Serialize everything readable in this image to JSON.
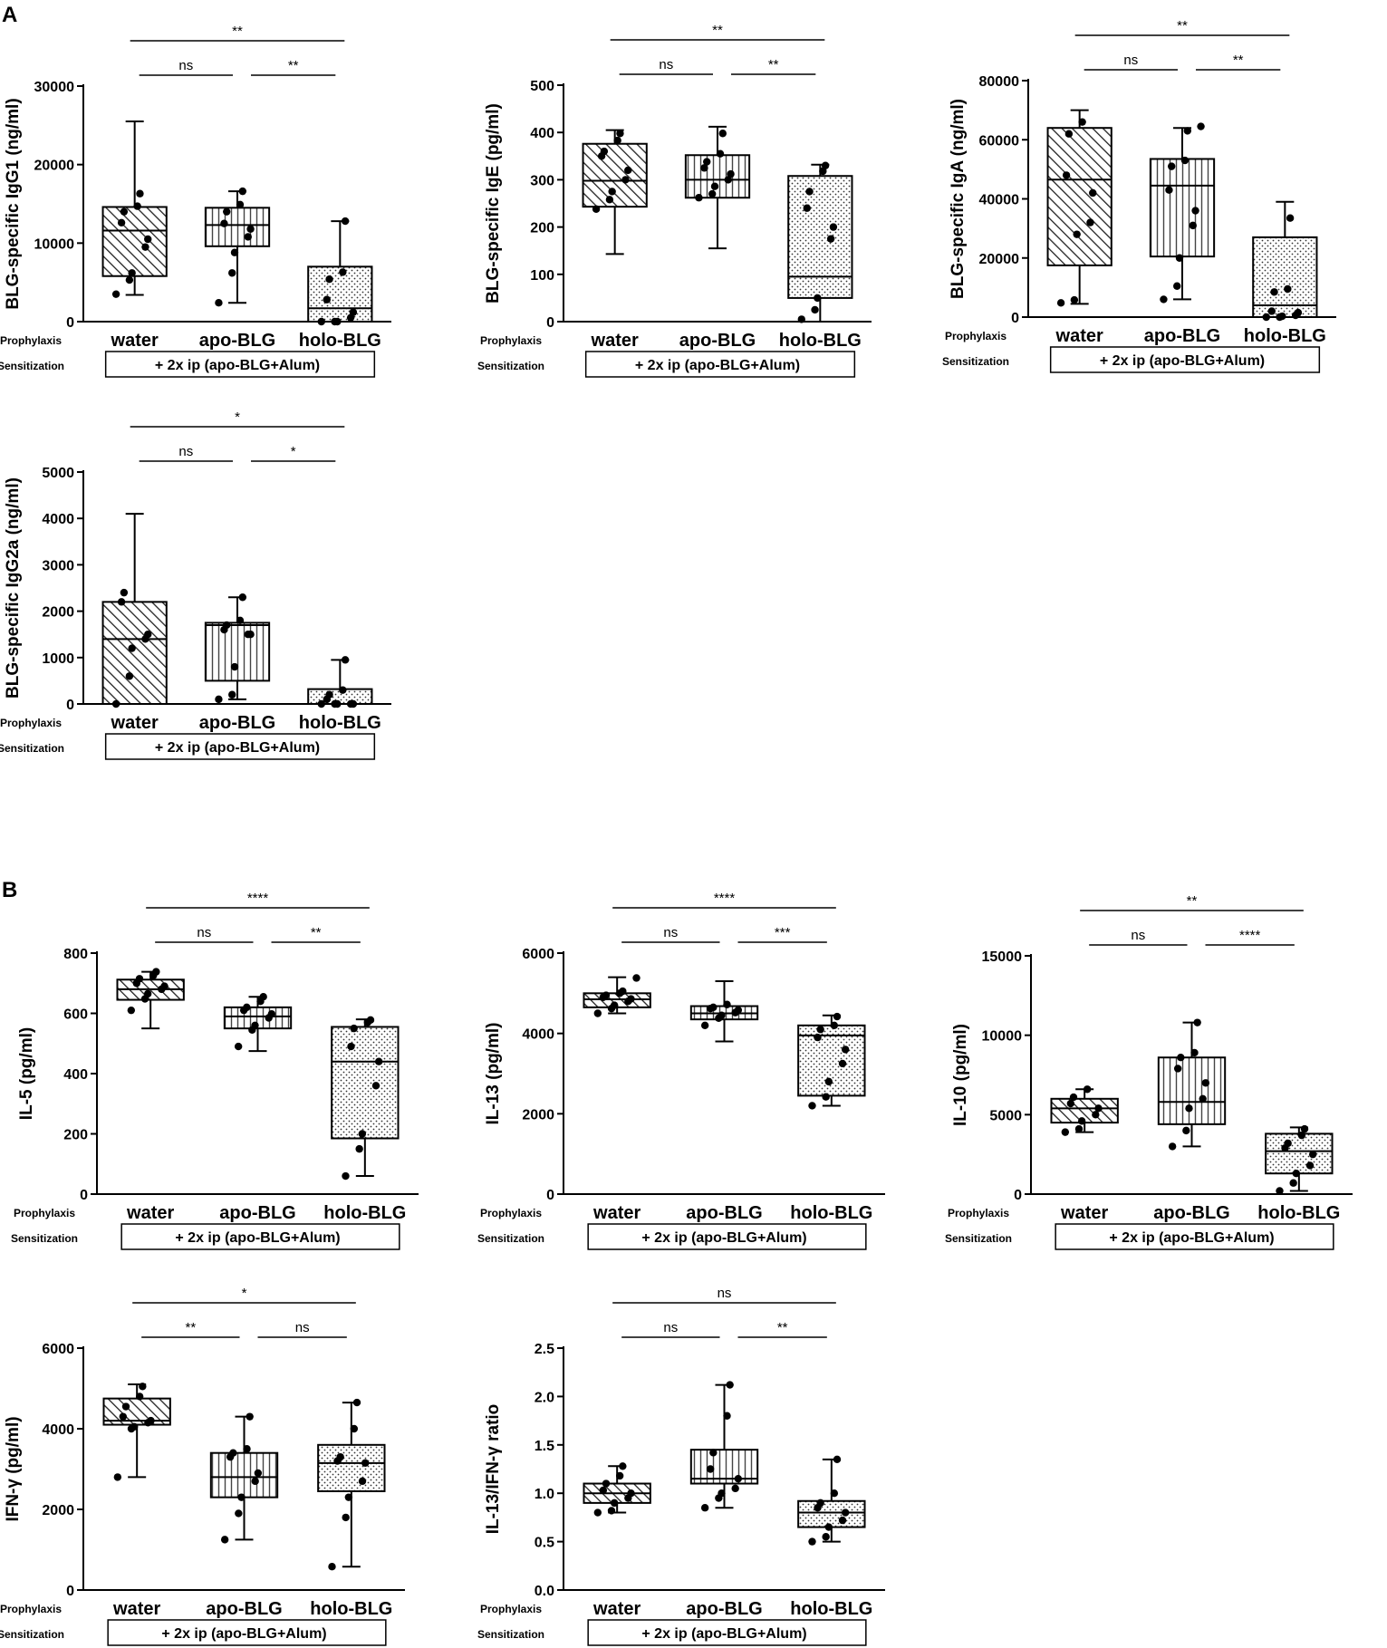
{
  "panel_labels": [
    "A",
    "B"
  ],
  "chart_data": [
    {
      "id": "igg1",
      "type": "box",
      "ylabel": "BLG-specific IgG1 (ng/ml)",
      "ylim": [
        0,
        30000
      ],
      "yticks": [
        0,
        10000,
        20000,
        30000
      ],
      "yticklabels": [
        "0",
        "10000",
        "20000",
        "30000"
      ],
      "categories": [
        "water",
        "apo-BLG",
        "holo-BLG"
      ],
      "row_labels": [
        "Prophylaxis",
        "Sensitization"
      ],
      "sensitization": "+ 2x ip (apo-BLG+Alum)",
      "boxes": [
        {
          "min": 3400,
          "q1": 5800,
          "median": 11600,
          "q3": 14600,
          "max": 25500,
          "pattern": "diag",
          "points": [
            3500,
            5300,
            6200,
            9500,
            10500,
            12600,
            14000,
            14700,
            16300
          ]
        },
        {
          "min": 2400,
          "q1": 9600,
          "median": 12300,
          "q3": 14500,
          "max": 16600,
          "pattern": "vert",
          "points": [
            2400,
            6200,
            8800,
            10800,
            11800,
            12500,
            14000,
            14900,
            16600
          ]
        },
        {
          "min": 0,
          "q1": 0,
          "median": 1700,
          "q3": 7000,
          "max": 12800,
          "pattern": "dots",
          "points": [
            0,
            0,
            0,
            500,
            1200,
            2800,
            5400,
            6300,
            12800
          ]
        }
      ],
      "sig": [
        {
          "from": 0,
          "to": 2,
          "label": "**",
          "level": 2
        },
        {
          "from": 0,
          "to": 1,
          "label": "ns",
          "level": 1
        },
        {
          "from": 1,
          "to": 2,
          "label": "**",
          "level": 1
        }
      ]
    },
    {
      "id": "ige",
      "type": "box",
      "ylabel": "BLG-specific IgE (pg/ml)",
      "ylim": [
        0,
        500
      ],
      "yticks": [
        0,
        100,
        200,
        300,
        400,
        500
      ],
      "yticklabels": [
        "0",
        "100",
        "200",
        "300",
        "400",
        "500"
      ],
      "categories": [
        "water",
        "apo-BLG",
        "holo-BLG"
      ],
      "row_labels": [
        "Prophylaxis",
        "Sensitization"
      ],
      "sensitization": "+ 2x ip (apo-BLG+Alum)",
      "boxes": [
        {
          "min": 143,
          "q1": 243,
          "median": 298,
          "q3": 376,
          "max": 405,
          "pattern": "diag",
          "points": [
            238,
            258,
            275,
            300,
            320,
            350,
            360,
            383,
            398
          ]
        },
        {
          "min": 155,
          "q1": 262,
          "median": 300,
          "q3": 352,
          "max": 412,
          "pattern": "vert",
          "points": [
            262,
            270,
            286,
            300,
            312,
            325,
            338,
            355,
            398
          ]
        },
        {
          "min": 0,
          "q1": 50,
          "median": 95,
          "q3": 308,
          "max": 332,
          "pattern": "dots",
          "points": [
            5,
            25,
            50,
            175,
            200,
            240,
            275,
            318,
            330
          ]
        }
      ],
      "sig": [
        {
          "from": 0,
          "to": 2,
          "label": "**",
          "level": 2
        },
        {
          "from": 0,
          "to": 1,
          "label": "ns",
          "level": 1
        },
        {
          "from": 1,
          "to": 2,
          "label": "**",
          "level": 1
        }
      ]
    },
    {
      "id": "iga",
      "type": "box",
      "ylabel": "BLG-specific IgA (ng/ml)",
      "ylim": [
        0,
        80000
      ],
      "yticks": [
        0,
        20000,
        40000,
        60000,
        80000
      ],
      "yticklabels": [
        "0",
        "20000",
        "40000",
        "60000",
        "80000"
      ],
      "categories": [
        "water",
        "apo-BLG",
        "holo-BLG"
      ],
      "row_labels": [
        "Prophylaxis",
        "Sensitization"
      ],
      "sensitization": "+ 2x ip (apo-BLG+Alum)",
      "boxes": [
        {
          "min": 4500,
          "q1": 17500,
          "median": 46500,
          "q3": 64000,
          "max": 70000,
          "pattern": "diag",
          "points": [
            4800,
            5800,
            28000,
            32000,
            42000,
            48000,
            62000,
            66000
          ]
        },
        {
          "min": 6000,
          "q1": 20500,
          "median": 44500,
          "q3": 53500,
          "max": 64000,
          "pattern": "vert",
          "points": [
            6000,
            10500,
            20000,
            31000,
            36000,
            43000,
            51000,
            53000,
            63000,
            64500
          ]
        },
        {
          "min": 0,
          "q1": 0,
          "median": 4000,
          "q3": 27000,
          "max": 39000,
          "pattern": "dots",
          "points": [
            0,
            0,
            300,
            600,
            1500,
            2000,
            8500,
            9500,
            33500
          ]
        }
      ],
      "sig": [
        {
          "from": 0,
          "to": 2,
          "label": "**",
          "level": 2
        },
        {
          "from": 0,
          "to": 1,
          "label": "ns",
          "level": 1
        },
        {
          "from": 1,
          "to": 2,
          "label": "**",
          "level": 1
        }
      ]
    },
    {
      "id": "igg2a",
      "type": "box",
      "ylabel": "BLG-specific IgG2a (ng/ml)",
      "ylim": [
        0,
        5000
      ],
      "yticks": [
        0,
        1000,
        2000,
        3000,
        4000,
        5000
      ],
      "yticklabels": [
        "0",
        "1000",
        "2000",
        "3000",
        "4000",
        "5000"
      ],
      "categories": [
        "water",
        "apo-BLG",
        "holo-BLG"
      ],
      "row_labels": [
        "Prophylaxis",
        "Sensitization"
      ],
      "sensitization": "+ 2x ip (apo-BLG+Alum)",
      "boxes": [
        {
          "min": 0,
          "q1": 0,
          "median": 1400,
          "q3": 2200,
          "max": 4100,
          "pattern": "diag",
          "points": [
            0,
            600,
            1200,
            1400,
            1500,
            2200,
            2400
          ]
        },
        {
          "min": 100,
          "q1": 500,
          "median": 1700,
          "q3": 1750,
          "max": 2300,
          "pattern": "vert",
          "points": [
            100,
            200,
            800,
            1500,
            1500,
            1600,
            1700,
            1800,
            2300
          ]
        },
        {
          "min": 0,
          "q1": 0,
          "median": 0,
          "q3": 320,
          "max": 950,
          "pattern": "dots",
          "points": [
            0,
            0,
            0,
            0,
            0,
            100,
            200,
            300,
            950
          ]
        }
      ],
      "sig": [
        {
          "from": 0,
          "to": 2,
          "label": "*",
          "level": 2
        },
        {
          "from": 0,
          "to": 1,
          "label": "ns",
          "level": 1
        },
        {
          "from": 1,
          "to": 2,
          "label": "*",
          "level": 1
        }
      ]
    },
    {
      "id": "il5",
      "type": "box",
      "ylabel": "IL-5 (pg/ml)",
      "ylim": [
        0,
        800
      ],
      "yticks": [
        0,
        200,
        400,
        600,
        800
      ],
      "yticklabels": [
        "0",
        "200",
        "400",
        "600",
        "800"
      ],
      "categories": [
        "water",
        "apo-BLG",
        "holo-BLG"
      ],
      "row_labels": [
        "Prophylaxis",
        "Sensitization"
      ],
      "sensitization": "+ 2x ip (apo-BLG+Alum)",
      "boxes": [
        {
          "min": 550,
          "q1": 645,
          "median": 680,
          "q3": 712,
          "max": 738,
          "pattern": "diag",
          "points": [
            610,
            648,
            665,
            680,
            690,
            700,
            715,
            725,
            738
          ]
        },
        {
          "min": 475,
          "q1": 550,
          "median": 590,
          "q3": 620,
          "max": 655,
          "pattern": "vert",
          "points": [
            490,
            545,
            560,
            585,
            598,
            610,
            620,
            640,
            655
          ]
        },
        {
          "min": 60,
          "q1": 185,
          "median": 440,
          "q3": 555,
          "max": 580,
          "pattern": "dots",
          "points": [
            60,
            150,
            200,
            360,
            440,
            490,
            550,
            570,
            578
          ]
        }
      ],
      "sig": [
        {
          "from": 0,
          "to": 2,
          "label": "****",
          "level": 2
        },
        {
          "from": 0,
          "to": 1,
          "label": "ns",
          "level": 1
        },
        {
          "from": 1,
          "to": 2,
          "label": "**",
          "level": 1
        }
      ]
    },
    {
      "id": "il13",
      "type": "box",
      "ylabel": "IL-13 (pg/ml)",
      "ylim": [
        0,
        6000
      ],
      "yticks": [
        0,
        2000,
        4000,
        6000
      ],
      "yticklabels": [
        "0",
        "2000",
        "4000",
        "6000"
      ],
      "categories": [
        "water",
        "apo-BLG",
        "holo-BLG"
      ],
      "row_labels": [
        "Prophylaxis",
        "Sensitization"
      ],
      "sensitization": "+ 2x ip (apo-BLG+Alum)",
      "boxes": [
        {
          "min": 4500,
          "q1": 4650,
          "median": 4850,
          "q3": 5000,
          "max": 5400,
          "pattern": "diag",
          "points": [
            4500,
            4620,
            4700,
            4800,
            4860,
            4900,
            4950,
            5000,
            5050,
            5380
          ]
        },
        {
          "min": 3800,
          "q1": 4350,
          "median": 4500,
          "q3": 4680,
          "max": 5300,
          "pattern": "vert",
          "points": [
            4200,
            4380,
            4450,
            4520,
            4580,
            4620,
            4650,
            4720
          ]
        },
        {
          "min": 2200,
          "q1": 2450,
          "median": 3950,
          "q3": 4200,
          "max": 4450,
          "pattern": "dots",
          "points": [
            2200,
            2420,
            2800,
            3250,
            3600,
            3900,
            4100,
            4200,
            4420
          ]
        }
      ],
      "sig": [
        {
          "from": 0,
          "to": 2,
          "label": "****",
          "level": 2
        },
        {
          "from": 0,
          "to": 1,
          "label": "ns",
          "level": 1
        },
        {
          "from": 1,
          "to": 2,
          "label": "***",
          "level": 1
        }
      ]
    },
    {
      "id": "il10",
      "type": "box",
      "ylabel": "IL-10 (pg/ml)",
      "ylim": [
        0,
        15000
      ],
      "yticks": [
        0,
        5000,
        10000,
        15000
      ],
      "yticklabels": [
        "0",
        "5000",
        "10000",
        "15000"
      ],
      "categories": [
        "water",
        "apo-BLG",
        "holo-BLG"
      ],
      "row_labels": [
        "Prophylaxis",
        "Sensitization"
      ],
      "sensitization": "+ 2x ip (apo-BLG+Alum)",
      "boxes": [
        {
          "min": 3900,
          "q1": 4500,
          "median": 5400,
          "q3": 6000,
          "max": 6600,
          "pattern": "diag",
          "points": [
            3900,
            4100,
            4600,
            5000,
            5400,
            5700,
            6100,
            6600
          ]
        },
        {
          "min": 3000,
          "q1": 4400,
          "median": 5800,
          "q3": 8600,
          "max": 10800,
          "pattern": "vert",
          "points": [
            3000,
            4000,
            5400,
            6000,
            7000,
            7900,
            8600,
            8900,
            10800
          ]
        },
        {
          "min": 200,
          "q1": 1300,
          "median": 2700,
          "q3": 3800,
          "max": 4200,
          "pattern": "dots",
          "points": [
            200,
            700,
            1300,
            1800,
            2500,
            2900,
            3200,
            3700,
            4100
          ]
        }
      ],
      "sig": [
        {
          "from": 0,
          "to": 2,
          "label": "**",
          "level": 2
        },
        {
          "from": 0,
          "to": 1,
          "label": "ns",
          "level": 1
        },
        {
          "from": 1,
          "to": 2,
          "label": "****",
          "level": 1
        }
      ]
    },
    {
      "id": "ifng",
      "type": "box",
      "ylabel": "IFN-γ (pg/ml)",
      "ylim": [
        0,
        6000
      ],
      "yticks": [
        0,
        2000,
        4000,
        6000
      ],
      "yticklabels": [
        "0",
        "2000",
        "4000",
        "6000"
      ],
      "categories": [
        "water",
        "apo-BLG",
        "holo-BLG"
      ],
      "row_labels": [
        "Prophylaxis",
        "Sensitization"
      ],
      "sensitization": "+ 2x ip (apo-BLG+Alum)",
      "boxes": [
        {
          "min": 2800,
          "q1": 4100,
          "median": 4200,
          "q3": 4750,
          "max": 5100,
          "pattern": "diag",
          "points": [
            2800,
            4000,
            4050,
            4150,
            4200,
            4300,
            4550,
            4800,
            5050
          ]
        },
        {
          "min": 1250,
          "q1": 2300,
          "median": 2800,
          "q3": 3400,
          "max": 4300,
          "pattern": "vert",
          "points": [
            1250,
            1900,
            2300,
            2700,
            2900,
            3300,
            3400,
            3500,
            4300
          ]
        },
        {
          "min": 580,
          "q1": 2450,
          "median": 3150,
          "q3": 3600,
          "max": 4650,
          "pattern": "dots",
          "points": [
            580,
            1800,
            2300,
            2700,
            3150,
            3200,
            3300,
            4000,
            4650
          ]
        }
      ],
      "sig": [
        {
          "from": 0,
          "to": 2,
          "label": "*",
          "level": 2
        },
        {
          "from": 0,
          "to": 1,
          "label": "**",
          "level": 1
        },
        {
          "from": 1,
          "to": 2,
          "label": "ns",
          "level": 1
        }
      ]
    },
    {
      "id": "ratio",
      "type": "box",
      "ylabel": "IL-13/IFN-γ ratio",
      "ylim": [
        0,
        2.5
      ],
      "yticks": [
        0,
        0.5,
        1,
        1.5,
        2,
        2.5
      ],
      "yticklabels": [
        "0.0",
        "0.5",
        "1.0",
        "1.5",
        "2.0",
        "2.5"
      ],
      "categories": [
        "water",
        "apo-BLG",
        "holo-BLG"
      ],
      "row_labels": [
        "Prophylaxis",
        "Sensitization"
      ],
      "sensitization": "+ 2x ip (apo-BLG+Alum)",
      "boxes": [
        {
          "min": 0.8,
          "q1": 0.9,
          "median": 1.0,
          "q3": 1.1,
          "max": 1.28,
          "pattern": "diag",
          "points": [
            0.8,
            0.82,
            0.9,
            0.95,
            1.0,
            1.03,
            1.1,
            1.18,
            1.28
          ]
        },
        {
          "min": 0.85,
          "q1": 1.1,
          "median": 1.15,
          "q3": 1.45,
          "max": 2.12,
          "pattern": "vert",
          "points": [
            0.85,
            0.95,
            1.0,
            1.05,
            1.15,
            1.25,
            1.42,
            1.8,
            2.12
          ]
        },
        {
          "min": 0.5,
          "q1": 0.65,
          "median": 0.8,
          "q3": 0.92,
          "max": 1.35,
          "pattern": "dots",
          "points": [
            0.5,
            0.55,
            0.65,
            0.72,
            0.8,
            0.85,
            0.9,
            1.0,
            1.35
          ]
        }
      ],
      "sig": [
        {
          "from": 0,
          "to": 2,
          "label": "ns",
          "level": 2
        },
        {
          "from": 0,
          "to": 1,
          "label": "ns",
          "level": 1
        },
        {
          "from": 1,
          "to": 2,
          "label": "**",
          "level": 1
        }
      ]
    }
  ]
}
